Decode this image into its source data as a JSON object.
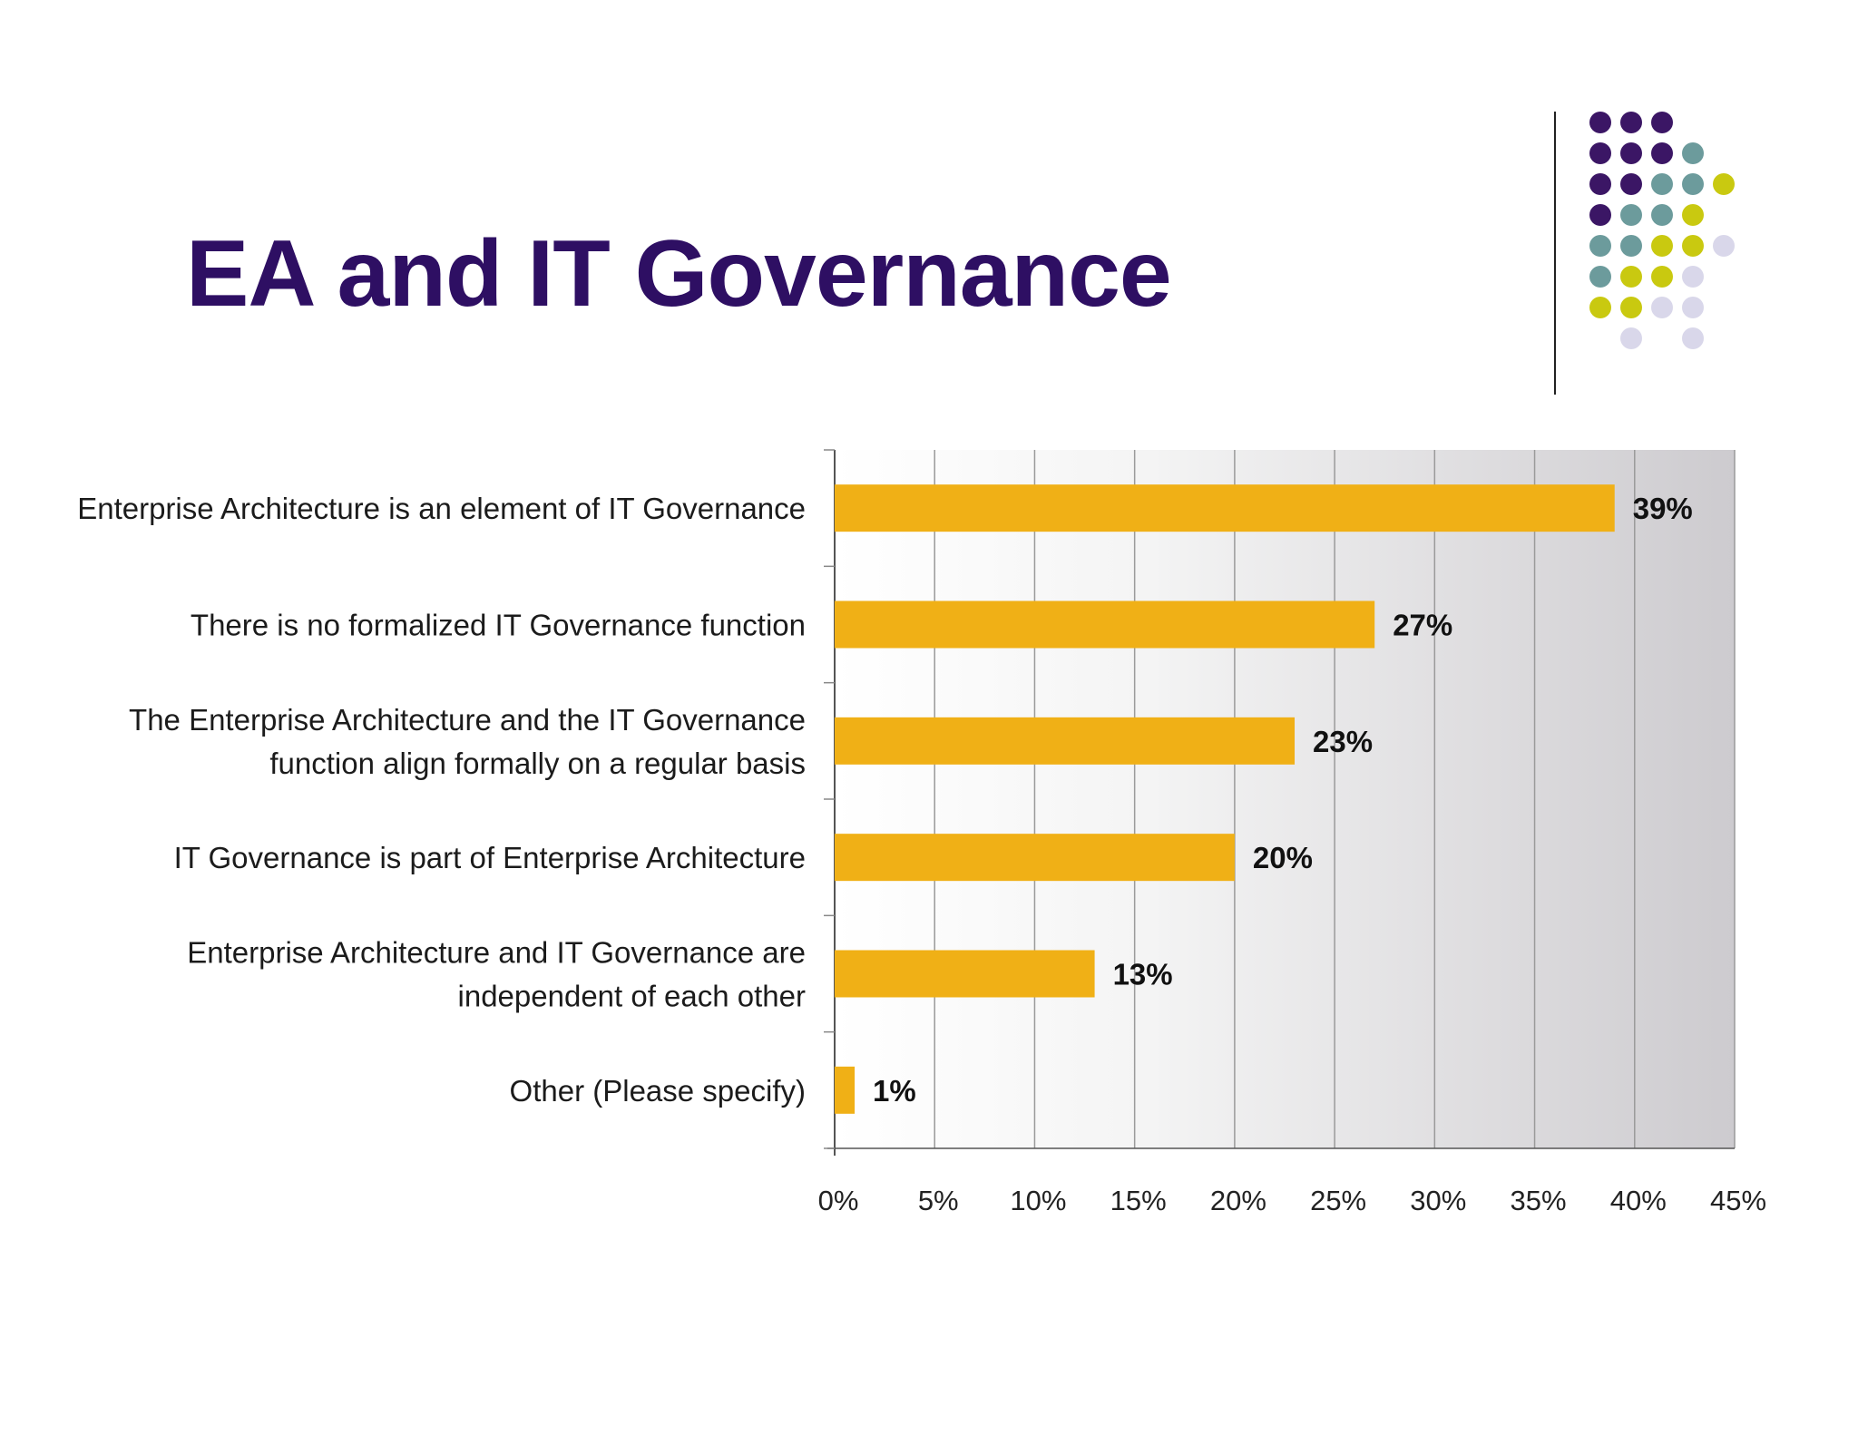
{
  "slide": {
    "title": "EA and IT Governance"
  },
  "colors": {
    "title": "#2e0f63",
    "bar": "#f0b016",
    "dot_purple": "#3b1665",
    "dot_teal": "#6c9b9c",
    "dot_yellow": "#c9c910",
    "dot_lavender": "#d9d7ea"
  },
  "decoration": {
    "dot_grid": [
      [
        "purple",
        "purple",
        "purple",
        null,
        null
      ],
      [
        "purple",
        "purple",
        "purple",
        "teal",
        null
      ],
      [
        "purple",
        "purple",
        "teal",
        "teal",
        "yellow"
      ],
      [
        "purple",
        "teal",
        "teal",
        "yellow",
        null
      ],
      [
        "teal",
        "teal",
        "yellow",
        "yellow",
        "lavender"
      ],
      [
        "teal",
        "yellow",
        "yellow",
        "lavender",
        null
      ],
      [
        "yellow",
        "yellow",
        "lavender",
        "lavender",
        null
      ],
      [
        null,
        "lavender",
        null,
        "lavender",
        null
      ]
    ]
  },
  "chart_data": {
    "type": "bar",
    "orientation": "horizontal",
    "categories": [
      [
        "Enterprise Architecture is an element of IT Governance"
      ],
      [
        "There is no formalized IT Governance function"
      ],
      [
        "The Enterprise Architecture and the IT Governance",
        "function align formally on a regular basis"
      ],
      [
        "IT Governance is part of Enterprise Architecture"
      ],
      [
        "Enterprise Architecture and IT Governance are",
        "independent of each other"
      ],
      [
        "Other (Please specify)"
      ]
    ],
    "values": [
      39,
      27,
      23,
      20,
      13,
      1
    ],
    "value_labels": [
      "39%",
      "27%",
      "23%",
      "20%",
      "13%",
      "1%"
    ],
    "x_ticks": [
      "0%",
      "5%",
      "10%",
      "15%",
      "20%",
      "25%",
      "30%",
      "35%",
      "40%",
      "45%"
    ],
    "xlim": [
      0,
      45
    ],
    "grid": true
  }
}
